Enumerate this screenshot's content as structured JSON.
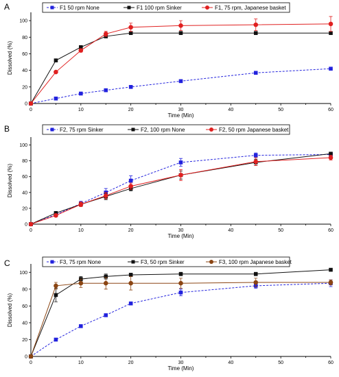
{
  "chart_data": [
    {
      "type": "line",
      "panel_label": "A",
      "xlabel": "Time (Min)",
      "ylabel": "Dissolved (%)",
      "xlim": [
        0,
        60
      ],
      "ylim": [
        0,
        110
      ],
      "xticks": [
        0,
        10,
        20,
        30,
        40,
        50,
        60
      ],
      "yticks": [
        0,
        20,
        40,
        60,
        80,
        100
      ],
      "grid": false,
      "legend": "top, boxed",
      "x": [
        0,
        5,
        10,
        15,
        20,
        30,
        45,
        60
      ],
      "series": [
        {
          "name": "F1 50 rpm    None",
          "color": "#2222dd",
          "marker": "square",
          "dash": true,
          "values": [
            0,
            6,
            12,
            16,
            20,
            27,
            37,
            42
          ],
          "err": [
            0,
            0,
            0,
            0,
            0,
            0,
            0,
            0
          ]
        },
        {
          "name": "F1 100 rpm Sinker",
          "color": "#111111",
          "marker": "square",
          "dash": false,
          "values": [
            0,
            52,
            68,
            81,
            85,
            85,
            85,
            85
          ],
          "err": [
            0,
            0,
            0,
            0,
            0,
            0,
            0,
            0
          ]
        },
        {
          "name": "F1, 75 rpm, Japanese basket",
          "color": "#e02020",
          "marker": "circle",
          "dash": false,
          "values": [
            0,
            38,
            64,
            84,
            92,
            94,
            95,
            96
          ],
          "err": [
            0,
            0,
            2,
            3,
            5,
            6,
            7,
            9
          ]
        }
      ]
    },
    {
      "type": "line",
      "panel_label": "B",
      "xlabel": "Time (Min)",
      "ylabel": "Dissolved (%)",
      "xlim": [
        0,
        60
      ],
      "ylim": [
        0,
        110
      ],
      "xticks": [
        0,
        10,
        20,
        30,
        40,
        50,
        60
      ],
      "yticks": [
        0,
        20,
        40,
        60,
        80,
        100
      ],
      "grid": false,
      "legend": "top, boxed",
      "x": [
        0,
        5,
        10,
        15,
        20,
        30,
        45,
        60
      ],
      "series": [
        {
          "name": "F2, 75 rpm Sinker",
          "color": "#2222dd",
          "marker": "square",
          "dash": true,
          "values": [
            0,
            12,
            26,
            40,
            55,
            78,
            87,
            88
          ],
          "err": [
            0,
            2,
            3,
            5,
            6,
            5,
            3,
            2
          ]
        },
        {
          "name": "F2, 100 rpm    None",
          "color": "#111111",
          "marker": "square",
          "dash": false,
          "values": [
            0,
            14,
            25,
            35,
            45,
            62,
            78,
            89
          ],
          "err": [
            0,
            2,
            2,
            4,
            3,
            5,
            4,
            2
          ]
        },
        {
          "name": "F2, 50 rpm Japanese basket",
          "color": "#e02020",
          "marker": "circle",
          "dash": false,
          "values": [
            0,
            11,
            25,
            36,
            48,
            62,
            79,
            84
          ],
          "err": [
            0,
            2,
            3,
            4,
            4,
            7,
            5,
            3
          ]
        }
      ]
    },
    {
      "type": "line",
      "panel_label": "C",
      "xlabel": "Time (Min)",
      "ylabel": "Dissolved (%)",
      "xlim": [
        0,
        60
      ],
      "ylim": [
        0,
        110
      ],
      "xticks": [
        0,
        10,
        20,
        30,
        40,
        50,
        60
      ],
      "yticks": [
        0,
        20,
        40,
        60,
        80,
        100
      ],
      "grid": false,
      "legend": "top, boxed",
      "x": [
        0,
        5,
        10,
        15,
        20,
        30,
        45,
        60
      ],
      "series": [
        {
          "name": "F3, 75 rpm  None",
          "color": "#2222dd",
          "marker": "square",
          "dash": true,
          "values": [
            0,
            20,
            36,
            49,
            63,
            76,
            84,
            87
          ],
          "err": [
            0,
            0,
            0,
            0,
            0,
            4,
            3,
            4
          ]
        },
        {
          "name": "F3, 50 rpm Sinker",
          "color": "#111111",
          "marker": "square",
          "dash": false,
          "values": [
            0,
            73,
            92,
            95,
            97,
            98,
            98,
            103
          ],
          "err": [
            0,
            8,
            3,
            3,
            2,
            2,
            2,
            1
          ]
        },
        {
          "name": "F3, 100 rpm Japanese basket",
          "color": "#8b4513",
          "marker": "circle",
          "dash": false,
          "values": [
            0,
            84,
            87,
            87,
            87,
            87,
            88,
            88
          ],
          "err": [
            0,
            4,
            5,
            7,
            8,
            6,
            5,
            3
          ]
        }
      ]
    }
  ]
}
